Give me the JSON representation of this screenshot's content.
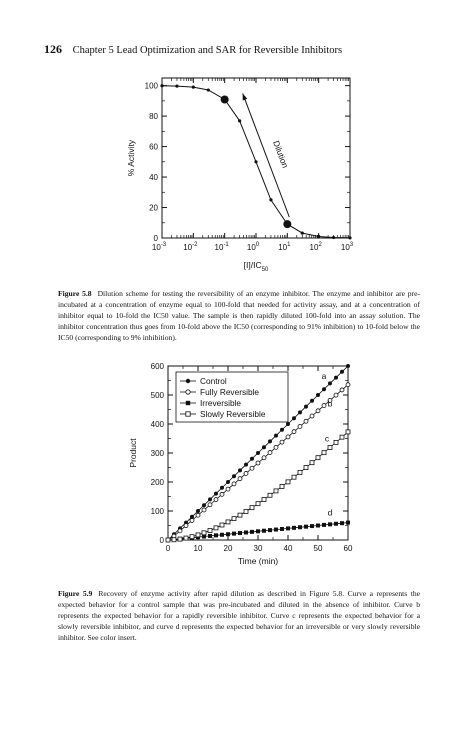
{
  "header": {
    "page_number": "126",
    "running_title": "Chapter 5   Lead Optimization and SAR for Reversible Inhibitors"
  },
  "figure1": {
    "caption_label": "Figure 5.8",
    "caption_text": "Dilution scheme for testing the reversibility of an enzyme inhibitor. The enzyme and inhibitor are pre-incubated at a concentration of enzyme equal to 100-fold that needed for activity assay, and at a concentration of inhibitor equal to 10-fold the IC50 value. The sample is then rapidly diluted 100-fold into an assay solution. The inhibitor concentration thus goes from 10-fold above the IC50 (corresponding to 91% inhibition) to 10-fold below the IC50 (corresponding to 9% inhibition).",
    "chart_data": {
      "type": "line",
      "xlabel": "[I]/IC50",
      "ylabel": "% Activity",
      "xscale": "log",
      "xlim": [
        0.001,
        1000
      ],
      "ylim": [
        0,
        105
      ],
      "xticks": [
        "10-3",
        "10-2",
        "10-1",
        "100",
        "101",
        "102",
        "103"
      ],
      "yticks": [
        "0",
        "20",
        "40",
        "60",
        "80",
        "100"
      ],
      "annotation": "Dilution",
      "series": [
        {
          "x": [
            0.001,
            0.003,
            0.01,
            0.03,
            0.1,
            0.3,
            1,
            3,
            10,
            30,
            100,
            300,
            1000
          ],
          "y": [
            99.9,
            99.7,
            99.0,
            97.1,
            90.9,
            76.9,
            50.0,
            25.0,
            9.1,
            3.2,
            1.0,
            0.3,
            0.1
          ]
        }
      ],
      "highlight_points": [
        {
          "x": 0.1,
          "y": 90.9
        },
        {
          "x": 10,
          "y": 9.1
        }
      ]
    }
  },
  "figure2": {
    "caption_label": "Figure 5.9",
    "caption_text": "Recovery of enzyme activity after rapid dilution as described in Figure 5.8. Curve a represents the expected behavior for a control sample that was pre-incubated and diluted in the absence of inhibitor. Curve b represents the expected behavior for a rapidly reversible inhibitor. Curve c represents the expected behavior for a slowly reversible inhibitor, and curve d represents the expected behavior for an irreversible or very slowly reversible inhibitor. See color insert.",
    "chart_data": {
      "type": "scatter",
      "xlabel": "Time (min)",
      "ylabel": "Product",
      "xlim": [
        0,
        60
      ],
      "ylim": [
        0,
        600
      ],
      "xticks": [
        0,
        10,
        20,
        30,
        40,
        50,
        60
      ],
      "yticks": [
        0,
        100,
        200,
        300,
        400,
        500,
        600
      ],
      "legend_position": "top-left",
      "series": [
        {
          "name": "Control",
          "marker": "filled-circle",
          "curve_label": "a",
          "rate": 10,
          "lag": 0
        },
        {
          "name": "Fully Reversible",
          "marker": "open-circle",
          "curve_label": "b",
          "rate": 9,
          "lag": 0.5
        },
        {
          "name": "Irreversible",
          "marker": "filled-square",
          "curve_label": "d",
          "rate": 1,
          "lag": 0
        },
        {
          "name": "Slowly Reversible",
          "marker": "open-square",
          "curve_label": "c",
          "rate": 10,
          "lag": 25
        }
      ]
    }
  }
}
